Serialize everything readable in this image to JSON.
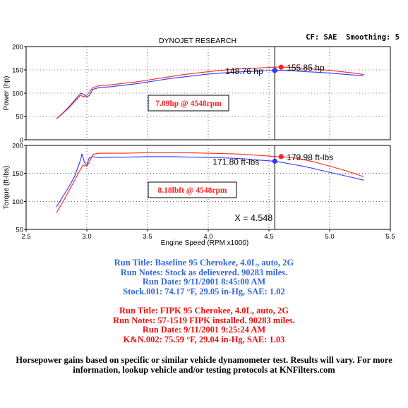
{
  "header": {
    "title": "DYNOJET RESEARCH",
    "settings": "CF: SAE  Smoothing: 5"
  },
  "colors": {
    "baseline": "#3333ff",
    "fipk": "#ff2222",
    "grid": "#000000",
    "baseline_text": "#3366dd",
    "fipk_text": "#ee1111"
  },
  "chart_data": [
    {
      "type": "line",
      "ylabel": "Power (hp)",
      "ylim": [
        0,
        200
      ],
      "yticks": [
        "0",
        "50",
        "100",
        "150",
        "200"
      ],
      "xlim": [
        2.5,
        5.5
      ],
      "grid": true,
      "series": [
        {
          "name": "Stock.001",
          "color": "#3333ff",
          "x": [
            2.75,
            2.8,
            2.85,
            2.9,
            2.95,
            2.97,
            3.0,
            3.02,
            3.05,
            3.1,
            3.2,
            3.3,
            3.4,
            3.5,
            3.6,
            3.7,
            3.8,
            3.9,
            4.0,
            4.1,
            4.2,
            4.3,
            4.4,
            4.5,
            4.548,
            4.6,
            4.7,
            4.8,
            4.9,
            5.0,
            5.1,
            5.2,
            5.28
          ],
          "y": [
            45,
            57,
            70,
            85,
            100,
            98,
            92,
            95,
            108,
            112,
            114,
            117,
            120,
            124,
            128,
            132,
            135,
            138,
            141,
            143,
            145,
            146,
            147,
            148.5,
            148.76,
            149,
            148,
            146,
            145,
            143,
            141,
            139,
            137
          ]
        },
        {
          "name": "K&N.002",
          "color": "#ff2222",
          "x": [
            2.75,
            2.8,
            2.85,
            2.9,
            2.95,
            2.97,
            3.0,
            3.02,
            3.05,
            3.1,
            3.2,
            3.3,
            3.4,
            3.5,
            3.6,
            3.7,
            3.8,
            3.9,
            4.0,
            4.1,
            4.2,
            4.3,
            4.4,
            4.5,
            4.548,
            4.6,
            4.7,
            4.8,
            4.9,
            5.0,
            5.1,
            5.2,
            5.28
          ],
          "y": [
            45,
            56,
            68,
            82,
            96,
            92,
            96,
            102,
            112,
            116,
            118,
            121,
            124,
            128,
            132,
            136,
            140,
            143,
            146,
            149,
            151,
            153,
            154,
            155.3,
            155.85,
            156,
            155,
            153,
            151,
            149,
            146,
            143,
            140
          ]
        }
      ],
      "markers": [
        {
          "series": "Stock.001",
          "x": 4.548,
          "y": 148.76,
          "label": "148.76 hp"
        },
        {
          "series": "K&N.002",
          "x": 4.6,
          "y": 155.85,
          "label": "155.85 hp"
        }
      ],
      "annotation": "7.09hp @ 4548rpm"
    },
    {
      "type": "line",
      "ylabel": "Torque (ft-lbs)",
      "ylim": [
        50,
        200
      ],
      "yticks": [
        "50",
        "100",
        "150",
        "200"
      ],
      "xlim": [
        2.5,
        5.5
      ],
      "xticks": [
        "2.5",
        "3.0",
        "3.5",
        "4.0",
        "4.5",
        "5.0",
        "5.5"
      ],
      "xlabel": "Engine Speed (RPM x1000)",
      "grid": true,
      "series": [
        {
          "name": "Stock.001",
          "color": "#3333ff",
          "x": [
            2.75,
            2.8,
            2.85,
            2.9,
            2.95,
            2.96,
            2.98,
            3.0,
            3.02,
            3.05,
            3.1,
            3.2,
            3.3,
            3.4,
            3.5,
            3.6,
            3.7,
            3.8,
            3.9,
            4.0,
            4.1,
            4.2,
            4.3,
            4.4,
            4.5,
            4.548,
            4.6,
            4.7,
            4.8,
            4.9,
            5.0,
            5.1,
            5.2,
            5.28
          ],
          "y": [
            90,
            108,
            125,
            145,
            175,
            185,
            170,
            165,
            178,
            180,
            178,
            179,
            179,
            179.5,
            180,
            180,
            180,
            179.5,
            179,
            178.5,
            178,
            177,
            176,
            174,
            172.5,
            171.8,
            170,
            166,
            162,
            157,
            152,
            147,
            142,
            138
          ]
        },
        {
          "name": "K&N.002",
          "color": "#ff2222",
          "x": [
            2.75,
            2.8,
            2.85,
            2.9,
            2.95,
            2.97,
            3.0,
            3.02,
            3.05,
            3.1,
            3.2,
            3.3,
            3.4,
            3.5,
            3.6,
            3.7,
            3.8,
            3.9,
            4.0,
            4.1,
            4.2,
            4.3,
            4.4,
            4.5,
            4.548,
            4.6,
            4.7,
            4.8,
            4.9,
            5.0,
            5.1,
            5.2,
            5.28
          ],
          "y": [
            80,
            98,
            118,
            138,
            158,
            165,
            163,
            170,
            184,
            186,
            186,
            186,
            186.5,
            187,
            187,
            187,
            187,
            186.5,
            186,
            185.5,
            185,
            184,
            182.5,
            181,
            180,
            179.98,
            178,
            174,
            169,
            163,
            157,
            150,
            144
          ]
        }
      ],
      "markers": [
        {
          "series": "Stock.001",
          "x": 4.548,
          "y": 171.8,
          "label": "171.80 ft-lbs"
        },
        {
          "series": "K&N.002",
          "x": 4.6,
          "y": 179.98,
          "label": "179.98 ft-lbs"
        }
      ],
      "annotation": "8.18lbft @ 4548rpm",
      "cursor": {
        "x": 4.548,
        "label": "X = 4.548"
      }
    }
  ],
  "run_info": {
    "baseline": [
      "Run Title: Baseline 95 Cherokee, 4.0L, auto, 2G",
      "Run Notes: Stock as delievered. 90283 miles.",
      "Run Date: 9/11/2001 8:45:00 AM",
      "Stock.001: 74.17 °F, 29.05 in-Hg, SAE: 1.02"
    ],
    "fipk": [
      "Run Title: FIPK 95 Cherokee, 4.0L, auto, 2G",
      "Run Notes: 57-1519 FIPK installed. 90283 miles.",
      "Run Date: 9/11/2001 9:25:24 AM",
      "K&N.002: 75.59 °F, 29.04 in-Hg, SAE: 1.03"
    ]
  },
  "footer": "Horsepower gains based on specific or similar vehicle dynamometer test. Results will vary. For more information, lookup vehicle and/or testing protocols at KNFilters.com"
}
